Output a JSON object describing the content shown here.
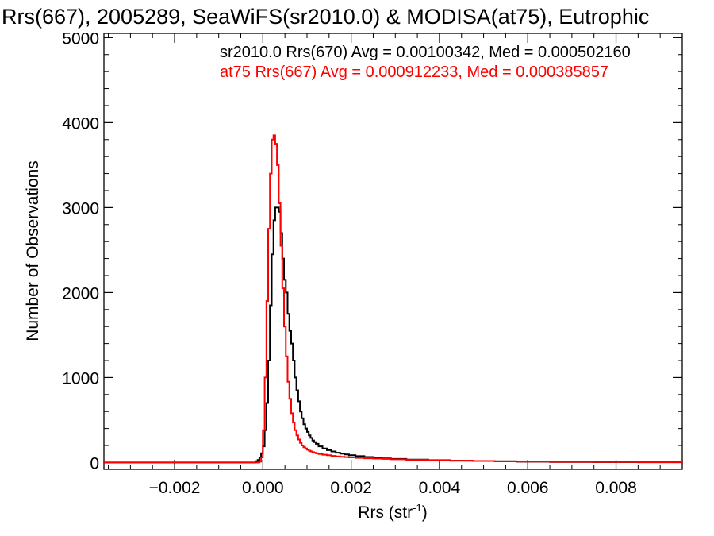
{
  "chart_data": {
    "type": "line",
    "title": "Rrs(667), 2005289, SeaWiFS(sr2010.0) & MODISA(at75), Eutrophic",
    "xlabel": "Rrs (str",
    "xlabel_sup": "-1",
    "xlabel_close": ")",
    "ylabel": "Number of Observations",
    "xlim": [
      -0.0036,
      0.0095
    ],
    "ylim": [
      -80,
      5050
    ],
    "x_ticks": [
      -0.002,
      0.0,
      0.002,
      0.004,
      0.006,
      0.008
    ],
    "x_tick_labels": [
      "−0.002",
      "0.000",
      "0.002",
      "0.004",
      "0.006",
      "0.008"
    ],
    "y_ticks": [
      0,
      1000,
      2000,
      3000,
      4000,
      5000
    ],
    "y_tick_labels": [
      "0",
      "1000",
      "2000",
      "3000",
      "4000",
      "5000"
    ],
    "grid": false,
    "legend_placement": "top-right",
    "series": [
      {
        "name": "sr2010.0 Rrs(670) Avg = 0.00100342, Med = 0.000502160",
        "color": "#000000",
        "x": [
          -0.00014,
          -0.0001,
          -6e-05,
          -2e-05,
          2e-05,
          6e-05,
          0.0001,
          0.00014,
          0.00018,
          0.00022,
          0.00026,
          0.0003,
          0.00034,
          0.00038,
          0.00042,
          0.00046,
          0.0005,
          0.00054,
          0.00058,
          0.00062,
          0.00066,
          0.0007,
          0.00074,
          0.00078,
          0.00082,
          0.00086,
          0.0009,
          0.00094,
          0.00098,
          0.00102,
          0.00106,
          0.0011,
          0.00114,
          0.00118,
          0.00122,
          0.0013,
          0.0014,
          0.0015,
          0.0016,
          0.0017,
          0.0018,
          0.0019,
          0.002,
          0.0022,
          0.0024,
          0.0026,
          0.0028,
          0.003,
          0.0035,
          0.004,
          0.0045,
          0.005,
          0.0055,
          0.006,
          0.007,
          0.008,
          0.009
        ],
        "values": [
          15,
          30,
          60,
          110,
          190,
          380,
          700,
          1200,
          1850,
          2450,
          2850,
          3000,
          3000,
          2950,
          2700,
          2400,
          2150,
          2000,
          1750,
          1550,
          1400,
          1200,
          1000,
          850,
          720,
          600,
          520,
          450,
          400,
          360,
          320,
          290,
          260,
          240,
          220,
          190,
          165,
          145,
          130,
          115,
          105,
          95,
          85,
          75,
          65,
          55,
          48,
          42,
          35,
          28,
          22,
          18,
          14,
          10,
          7,
          5,
          3
        ]
      },
      {
        "name": "at75 Rrs(667) Avg = 0.000912233, Med = 0.000385857",
        "color": "#ff0000",
        "x": [
          -6e-05,
          -2e-05,
          2e-05,
          6e-05,
          0.0001,
          0.00014,
          0.00018,
          0.00022,
          0.00026,
          0.0003,
          0.00034,
          0.00038,
          0.00042,
          0.00046,
          0.0005,
          0.00054,
          0.00058,
          0.00062,
          0.00066,
          0.0007,
          0.00074,
          0.00078,
          0.00082,
          0.00086,
          0.0009,
          0.00094,
          0.00098,
          0.00102,
          0.00106,
          0.0011,
          0.00114,
          0.00118,
          0.00122,
          0.0013,
          0.0014,
          0.0015,
          0.0016,
          0.0017,
          0.0018,
          0.0019,
          0.002,
          0.0022,
          0.0024,
          0.0026,
          0.0028,
          0.003,
          0.0035,
          0.004,
          0.0045,
          0.005,
          0.0055,
          0.006,
          0.007,
          0.008,
          0.009
        ],
        "values": [
          10,
          60,
          380,
          1000,
          1900,
          2750,
          3400,
          3800,
          3850,
          3750,
          3500,
          3050,
          2550,
          2050,
          1600,
          1250,
          950,
          750,
          580,
          470,
          380,
          320,
          270,
          230,
          200,
          180,
          165,
          150,
          140,
          130,
          122,
          115,
          108,
          100,
          92,
          85,
          78,
          72,
          68,
          64,
          60,
          55,
          50,
          46,
          42,
          38,
          32,
          27,
          22,
          18,
          14,
          11,
          8,
          6,
          4
        ]
      }
    ]
  }
}
